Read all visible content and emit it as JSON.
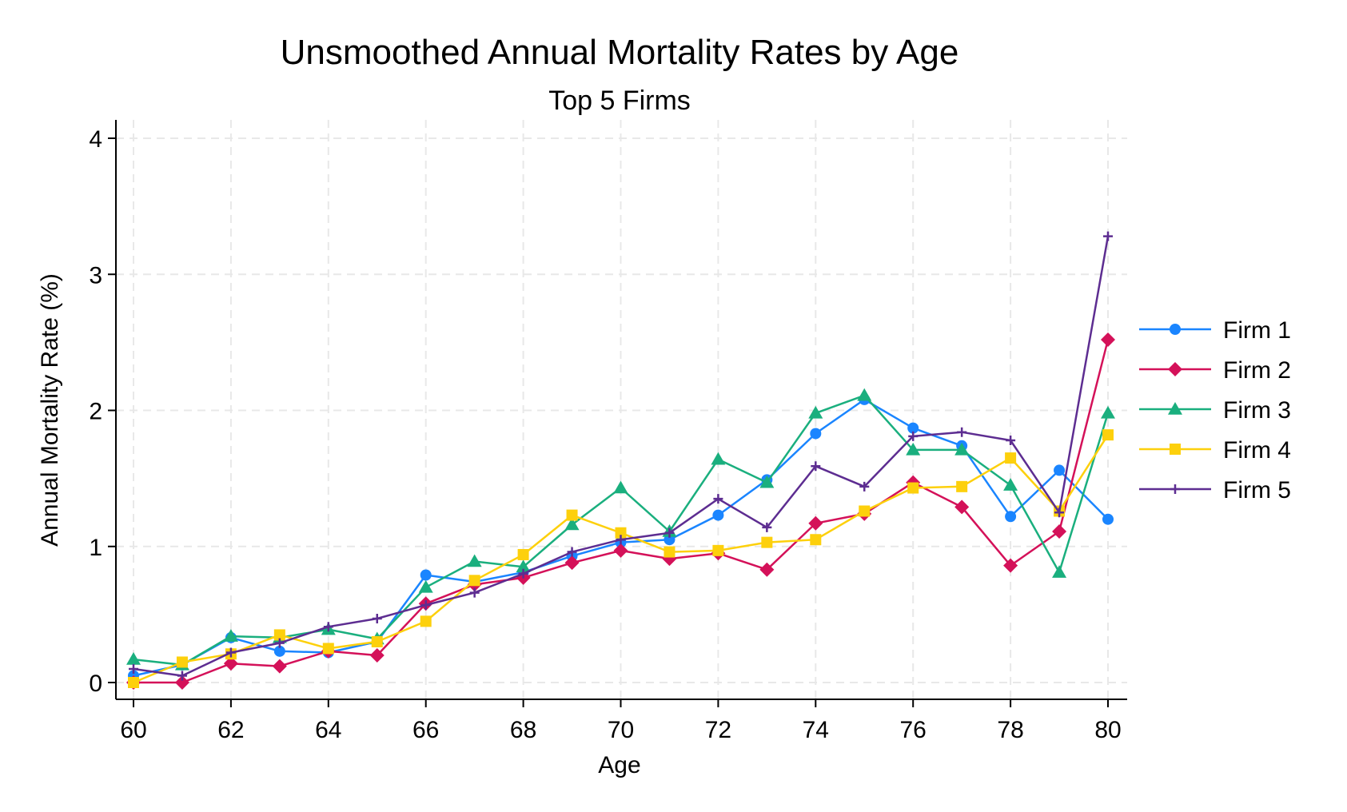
{
  "chart_data": {
    "type": "line",
    "title": "Unsmoothed Annual Mortality Rates by Age",
    "subtitle": "Top 5 Firms",
    "xlabel": "Age",
    "ylabel": "Annual Mortality Rate (%)",
    "xlim": [
      60,
      80
    ],
    "ylim": [
      0,
      4
    ],
    "x_ticks": [
      "60",
      "62",
      "64",
      "66",
      "68",
      "70",
      "72",
      "74",
      "76",
      "78",
      "80"
    ],
    "y_ticks": [
      "0",
      "1",
      "2",
      "3",
      "4"
    ],
    "grid": true,
    "legend_position": "right",
    "x": [
      60,
      61,
      62,
      63,
      64,
      65,
      66,
      67,
      68,
      69,
      70,
      71,
      72,
      73,
      74,
      75,
      76,
      77,
      78,
      79,
      80
    ],
    "series": [
      {
        "name": "Firm 1",
        "color": "#1a85ff",
        "marker": "circle",
        "values": [
          0.05,
          0.13,
          0.33,
          0.23,
          0.22,
          0.3,
          0.79,
          0.74,
          0.81,
          0.93,
          1.03,
          1.05,
          1.23,
          1.49,
          1.83,
          2.08,
          1.87,
          1.74,
          1.22,
          1.56,
          1.2
        ]
      },
      {
        "name": "Firm 2",
        "color": "#d41159",
        "marker": "diamond",
        "values": [
          0.0,
          0.0,
          0.14,
          0.12,
          0.23,
          0.2,
          0.58,
          0.72,
          0.77,
          0.88,
          0.97,
          0.91,
          0.95,
          0.83,
          1.17,
          1.24,
          1.47,
          1.29,
          0.86,
          1.11,
          2.52
        ]
      },
      {
        "name": "Firm 3",
        "color": "#1aaf7e",
        "marker": "triangle",
        "values": [
          0.17,
          0.13,
          0.34,
          0.33,
          0.39,
          0.32,
          0.7,
          0.89,
          0.85,
          1.16,
          1.43,
          1.11,
          1.64,
          1.47,
          1.98,
          2.11,
          1.71,
          1.71,
          1.45,
          0.81,
          1.98
        ]
      },
      {
        "name": "Firm 4",
        "color": "#fdd00c",
        "marker": "square",
        "values": [
          0.0,
          0.15,
          0.21,
          0.35,
          0.25,
          0.3,
          0.45,
          0.75,
          0.94,
          1.23,
          1.1,
          0.96,
          0.97,
          1.03,
          1.05,
          1.26,
          1.43,
          1.44,
          1.65,
          1.26,
          1.82
        ]
      },
      {
        "name": "Firm 5",
        "color": "#5d2d91",
        "marker": "plus",
        "values": [
          0.1,
          0.05,
          0.22,
          0.29,
          0.41,
          0.47,
          0.57,
          0.66,
          0.8,
          0.96,
          1.05,
          1.1,
          1.35,
          1.14,
          1.59,
          1.44,
          1.81,
          1.84,
          1.78,
          1.25,
          3.28
        ]
      }
    ]
  }
}
